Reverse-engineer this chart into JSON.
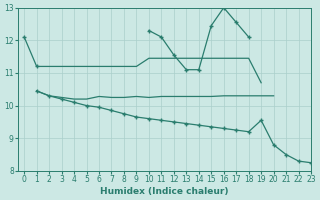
{
  "xlabel": "Humidex (Indice chaleur)",
  "x": [
    0,
    1,
    2,
    3,
    4,
    5,
    6,
    7,
    8,
    9,
    10,
    11,
    12,
    13,
    14,
    15,
    16,
    17,
    18,
    19,
    20,
    21,
    22,
    23
  ],
  "series_volatile": [
    12.1,
    11.2,
    null,
    null,
    null,
    null,
    null,
    null,
    null,
    null,
    12.3,
    12.1,
    11.55,
    11.1,
    11.1,
    12.45,
    13.0,
    12.55,
    12.1,
    null,
    null,
    null,
    null,
    null
  ],
  "series_flat_upper": [
    null,
    11.2,
    11.2,
    11.2,
    11.2,
    11.2,
    11.2,
    11.2,
    11.2,
    11.2,
    11.45,
    11.45,
    11.45,
    11.45,
    11.45,
    11.45,
    11.45,
    11.45,
    11.45,
    10.7,
    null,
    null,
    null,
    null
  ],
  "series_mid": [
    null,
    10.45,
    10.3,
    10.25,
    10.2,
    10.2,
    10.28,
    10.25,
    10.25,
    10.28,
    10.25,
    10.28,
    10.28,
    10.28,
    10.28,
    10.28,
    10.3,
    10.3,
    10.3,
    10.3,
    10.3,
    null,
    null,
    null
  ],
  "series_diag": [
    null,
    10.45,
    10.3,
    10.2,
    10.1,
    10.0,
    9.95,
    9.85,
    9.75,
    9.65,
    9.6,
    9.55,
    9.5,
    9.45,
    9.4,
    9.35,
    9.3,
    9.25,
    9.2,
    9.55,
    8.8,
    8.5,
    8.3,
    8.25
  ],
  "ylim": [
    8,
    13
  ],
  "xlim": [
    -0.5,
    23
  ],
  "yticks": [
    8,
    9,
    10,
    11,
    12,
    13
  ],
  "xticks": [
    0,
    1,
    2,
    3,
    4,
    5,
    6,
    7,
    8,
    9,
    10,
    11,
    12,
    13,
    14,
    15,
    16,
    17,
    18,
    19,
    20,
    21,
    22,
    23
  ],
  "line_color": "#2a7d6e",
  "bg_color": "#cce8e4",
  "grid_color": "#aacfcb"
}
